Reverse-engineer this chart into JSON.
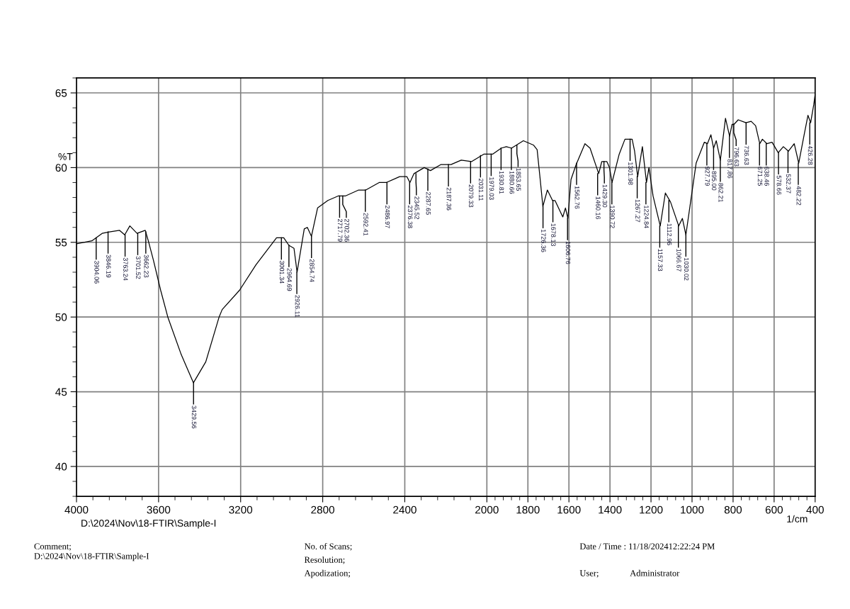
{
  "chart_data": {
    "type": "line",
    "xlabel": "1/cm",
    "ylabel": "%T",
    "x": [
      4000,
      3925,
      3875,
      3840,
      3790,
      3765,
      3740,
      3705,
      3665,
      3650,
      3625,
      3590,
      3555,
      3490,
      3430,
      3370,
      3305,
      3290,
      3205,
      3125,
      3025,
      2990,
      2965,
      2940,
      2925,
      2890,
      2875,
      2855,
      2825,
      2775,
      2725,
      2690,
      2625,
      2590,
      2525,
      2490,
      2425,
      2390,
      2375,
      2355,
      2305,
      2275,
      2225,
      2175,
      2125,
      2075,
      2015,
      1980,
      1972,
      1930,
      1905,
      1880,
      1822,
      1772,
      1755,
      1740,
      1727,
      1705,
      1680,
      1668,
      1630,
      1617,
      1605,
      1590,
      1565,
      1522,
      1497,
      1455,
      1440,
      1415,
      1402,
      1390,
      1355,
      1327,
      1292,
      1280,
      1265,
      1242,
      1222,
      1210,
      1190,
      1155,
      1130,
      1105,
      1065,
      1047,
      1030,
      1005,
      980,
      940,
      925,
      908,
      895,
      882,
      862,
      837,
      817,
      805,
      795,
      775,
      737,
      712,
      690,
      670,
      657,
      635,
      610,
      580,
      555,
      530,
      502,
      480,
      455,
      435,
      422,
      407,
      400
    ],
    "series": [
      {
        "color": "#000000",
        "values": [
          54.9,
          55.1,
          55.6,
          55.7,
          55.8,
          55.5,
          56.1,
          55.6,
          55.8,
          55.1,
          53.8,
          51.8,
          50.0,
          47.5,
          45.6,
          47.0,
          50.0,
          50.5,
          51.8,
          53.5,
          55.3,
          55.3,
          54.8,
          54.6,
          53.0,
          55.9,
          56.0,
          55.4,
          57.3,
          57.8,
          58.1,
          58.1,
          58.5,
          58.5,
          59.0,
          59.0,
          59.4,
          59.4,
          59.0,
          59.6,
          60.0,
          59.8,
          60.2,
          60.2,
          60.5,
          60.4,
          60.9,
          60.9,
          60.9,
          61.3,
          61.4,
          61.3,
          61.8,
          61.5,
          61.2,
          59.2,
          57.4,
          58.5,
          57.8,
          57.8,
          56.7,
          57.3,
          56.6,
          59.2,
          60.2,
          61.6,
          61.3,
          59.6,
          60.4,
          60.4,
          60.0,
          59.0,
          60.9,
          61.9,
          61.9,
          61.1,
          59.4,
          61.4,
          59.0,
          60.0,
          58.1,
          56.1,
          58.3,
          57.7,
          56.1,
          56.6,
          55.5,
          57.9,
          60.3,
          61.7,
          61.6,
          62.2,
          61.3,
          61.8,
          60.5,
          63.3,
          62.1,
          62.9,
          62.9,
          63.2,
          63.0,
          63.1,
          62.8,
          61.6,
          61.9,
          61.6,
          61.7,
          61.0,
          61.4,
          61.1,
          61.6,
          60.3,
          62.1,
          63.5,
          63.0,
          64.2,
          64.9
        ]
      }
    ],
    "xlim": [
      4000,
      400
    ],
    "xticks": [
      4000,
      3600,
      3200,
      2800,
      2400,
      2000,
      1800,
      1600,
      1400,
      1200,
      1000,
      800,
      600,
      400
    ],
    "ylim": [
      38,
      66
    ],
    "yticks": [
      40,
      45,
      50,
      55,
      60,
      65
    ],
    "grid": true,
    "annotations": [
      {
        "text": "3904.06",
        "x": 3904.06,
        "y": 55.3
      },
      {
        "text": "3846.19",
        "x": 3846.19,
        "y": 55.7
      },
      {
        "text": "3763.24",
        "x": 3763.24,
        "y": 55.5
      },
      {
        "text": "3701.52",
        "x": 3701.52,
        "y": 55.6
      },
      {
        "text": "3662.23",
        "x": 3662.23,
        "y": 55.7
      },
      {
        "text": "3429.56",
        "x": 3429.56,
        "y": 45.6
      },
      {
        "text": "3001.34",
        "x": 3001.34,
        "y": 55.3
      },
      {
        "text": "2964.69",
        "x": 2964.69,
        "y": 54.8
      },
      {
        "text": "2926.11",
        "x": 2926.11,
        "y": 53.0
      },
      {
        "text": "2854.74",
        "x": 2854.74,
        "y": 55.4
      },
      {
        "text": "2717.79",
        "x": 2717.79,
        "y": 58.1
      },
      {
        "text": "2702.36",
        "x": 2702.36,
        "y": 58.1
      },
      {
        "text": "2592.41",
        "x": 2592.41,
        "y": 58.5
      },
      {
        "text": "2486.97",
        "x": 2486.97,
        "y": 59.0
      },
      {
        "text": "2376.38",
        "x": 2376.38,
        "y": 59.0
      },
      {
        "text": "2345.52",
        "x": 2345.52,
        "y": 59.6
      },
      {
        "text": "2287.65",
        "x": 2287.65,
        "y": 59.9
      },
      {
        "text": "2187.36",
        "x": 2187.36,
        "y": 60.2
      },
      {
        "text": "2079.33",
        "x": 2079.33,
        "y": 60.4
      },
      {
        "text": "2031.11",
        "x": 2031.11,
        "y": 60.8
      },
      {
        "text": "1979.03",
        "x": 1979.03,
        "y": 60.9
      },
      {
        "text": "1930.81",
        "x": 1930.81,
        "y": 61.3
      },
      {
        "text": "1880.66",
        "x": 1880.66,
        "y": 61.3
      },
      {
        "text": "1853.65",
        "x": 1853.65,
        "y": 61.5
      },
      {
        "text": "1726.36",
        "x": 1726.36,
        "y": 57.4
      },
      {
        "text": "1678.13",
        "x": 1678.13,
        "y": 57.8
      },
      {
        "text": "1606.76",
        "x": 1606.76,
        "y": 56.6
      },
      {
        "text": "1562.76",
        "x": 1562.76,
        "y": 60.3
      },
      {
        "text": "1460.16",
        "x": 1460.16,
        "y": 59.6
      },
      {
        "text": "1429.30",
        "x": 1429.3,
        "y": 60.4
      },
      {
        "text": "1390.72",
        "x": 1390.72,
        "y": 59.0
      },
      {
        "text": "1301.98",
        "x": 1301.98,
        "y": 61.9
      },
      {
        "text": "1267.27",
        "x": 1267.27,
        "y": 59.4
      },
      {
        "text": "1224.84",
        "x": 1224.84,
        "y": 59.0
      },
      {
        "text": "1157.33",
        "x": 1157.33,
        "y": 56.1
      },
      {
        "text": "1112.96",
        "x": 1112.96,
        "y": 57.8
      },
      {
        "text": "1066.67",
        "x": 1066.67,
        "y": 56.1
      },
      {
        "text": "1030.02",
        "x": 1030.02,
        "y": 55.5
      },
      {
        "text": "927.79",
        "x": 927.79,
        "y": 61.6
      },
      {
        "text": "895.00",
        "x": 895.0,
        "y": 61.3
      },
      {
        "text": "862.21",
        "x": 862.21,
        "y": 60.5
      },
      {
        "text": "817.86",
        "x": 817.86,
        "y": 62.1
      },
      {
        "text": "796.63",
        "x": 796.63,
        "y": 62.9
      },
      {
        "text": "736.63",
        "x": 736.63,
        "y": 63.0
      },
      {
        "text": "671.25",
        "x": 671.25,
        "y": 61.6
      },
      {
        "text": "638.46",
        "x": 638.46,
        "y": 61.6
      },
      {
        "text": "578.66",
        "x": 578.66,
        "y": 61.0
      },
      {
        "text": "532.37",
        "x": 532.37,
        "y": 61.1
      },
      {
        "text": "482.22",
        "x": 482.22,
        "y": 60.3
      },
      {
        "text": "426.28",
        "x": 426.28,
        "y": 63.0
      },
      "D:\\2024\\Nov\\18-FTIR\\Sample-I",
      "Comment;",
      "D:\\2024\\Nov\\18-FTIR\\Sample-I",
      "No. of Scans;",
      "Resolution;",
      "Apodization;",
      "Date / Time : 11/18/202412:22:24 PM",
      "User;",
      "Administrator"
    ]
  }
}
